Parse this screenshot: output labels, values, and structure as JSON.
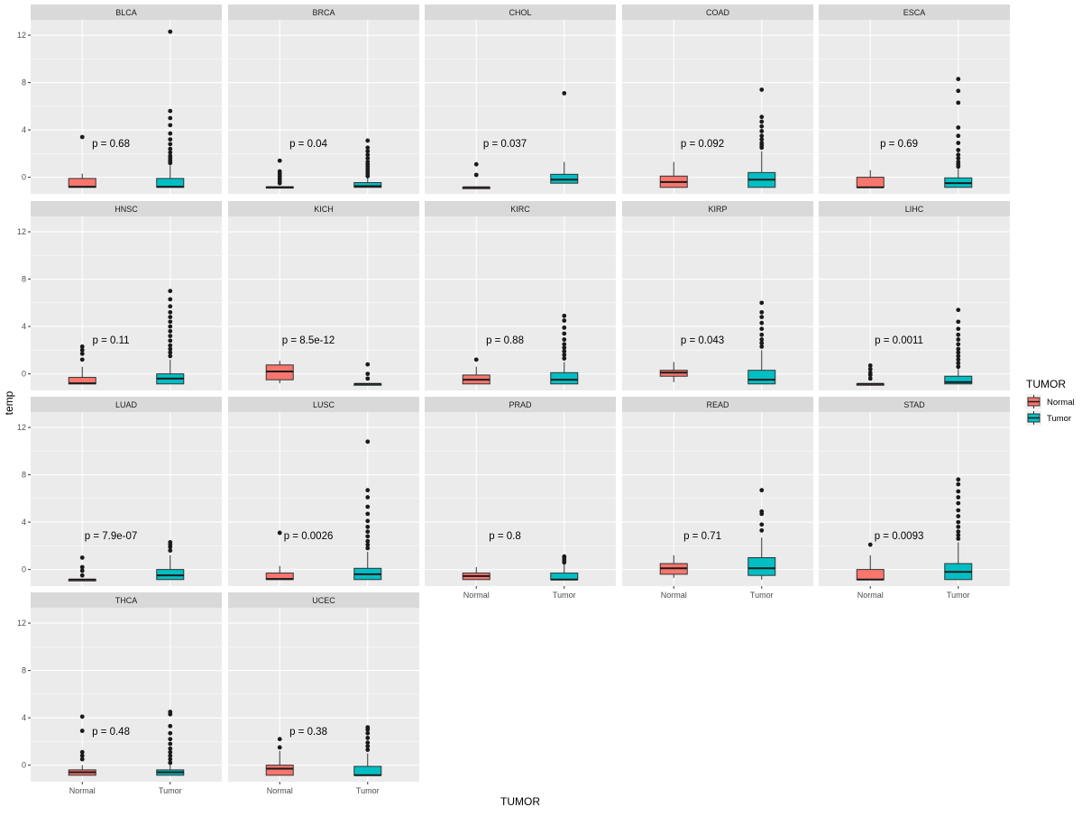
{
  "chart_data": {
    "type": "boxplot-facets",
    "xlabel": "TUMOR",
    "ylabel": "temp",
    "ylim": [
      -1.4,
      13.3
    ],
    "yticks": [
      0,
      4,
      8,
      12
    ],
    "categories": [
      "Normal",
      "Tumor"
    ],
    "legend": {
      "title": "TUMOR",
      "position": "right",
      "items": [
        {
          "label": "Normal",
          "color": "#F8766D"
        },
        {
          "label": "Tumor",
          "color": "#00BFC4"
        }
      ]
    },
    "colors": {
      "Normal": "#F8766D",
      "Tumor": "#00BFC4",
      "panel": "#EBEBEB",
      "strip": "#D9D9D9",
      "grid": "#FFFFFF"
    },
    "facets": [
      {
        "name": "BLCA",
        "p_label": "p = 0.68",
        "normal": {
          "lw": -0.85,
          "q1": -0.85,
          "med": -0.8,
          "q3": -0.1,
          "uw": 0.3,
          "out": [
            3.4
          ]
        },
        "tumor": {
          "lw": -0.85,
          "q1": -0.85,
          "med": -0.8,
          "q3": -0.1,
          "uw": 1.0,
          "out": [
            1.2,
            1.4,
            1.6,
            1.8,
            2.1,
            2.4,
            2.8,
            3.2,
            3.7,
            4.4,
            5.0,
            5.6,
            12.3
          ]
        }
      },
      {
        "name": "BRCA",
        "p_label": "p = 0.04",
        "normal": {
          "lw": -0.85,
          "q1": -0.85,
          "med": -0.85,
          "q3": -0.8,
          "uw": -0.75,
          "out": [
            -0.5,
            -0.3,
            -0.1,
            0.1,
            0.3,
            0.5,
            1.4
          ]
        },
        "tumor": {
          "lw": -0.85,
          "q1": -0.85,
          "med": -0.75,
          "q3": -0.45,
          "uw": 0.0,
          "out": [
            0.1,
            0.3,
            0.5,
            0.7,
            0.9,
            1.1,
            1.3,
            1.6,
            1.9,
            2.2,
            2.5,
            3.1
          ]
        }
      },
      {
        "name": "CHOL",
        "p_label": "p = 0.037",
        "normal": {
          "lw": -0.85,
          "q1": -0.85,
          "med": -0.85,
          "q3": -0.85,
          "uw": -0.85,
          "out": [
            0.2,
            1.1
          ]
        },
        "tumor": {
          "lw": -0.5,
          "q1": -0.5,
          "med": -0.2,
          "q3": 0.25,
          "uw": 1.3,
          "out": [
            7.1
          ]
        }
      },
      {
        "name": "COAD",
        "p_label": "p = 0.092",
        "normal": {
          "lw": -0.85,
          "q1": -0.85,
          "med": -0.4,
          "q3": 0.1,
          "uw": 1.3,
          "out": []
        },
        "tumor": {
          "lw": -0.85,
          "q1": -0.85,
          "med": -0.2,
          "q3": 0.4,
          "uw": 2.2,
          "out": [
            2.5,
            2.7,
            2.9,
            3.2,
            3.5,
            3.9,
            4.3,
            4.7,
            5.1,
            7.4
          ]
        }
      },
      {
        "name": "ESCA",
        "p_label": "p = 0.69",
        "normal": {
          "lw": -0.85,
          "q1": -0.85,
          "med": -0.85,
          "q3": 0.0,
          "uw": 0.6,
          "out": []
        },
        "tumor": {
          "lw": -0.85,
          "q1": -0.85,
          "med": -0.5,
          "q3": -0.05,
          "uw": 0.7,
          "out": [
            0.9,
            1.1,
            1.3,
            1.6,
            1.9,
            2.3,
            2.9,
            3.5,
            4.2,
            6.3,
            7.3,
            8.3
          ]
        }
      },
      {
        "name": "HNSC",
        "p_label": "p = 0.11",
        "normal": {
          "lw": -0.85,
          "q1": -0.85,
          "med": -0.8,
          "q3": -0.3,
          "uw": 0.6,
          "out": [
            1.2,
            1.7,
            2.0,
            2.3
          ]
        },
        "tumor": {
          "lw": -0.85,
          "q1": -0.85,
          "med": -0.4,
          "q3": 0.0,
          "uw": 1.2,
          "out": [
            1.5,
            1.8,
            2.1,
            2.4,
            2.8,
            3.2,
            3.6,
            4.0,
            4.4,
            4.8,
            5.2,
            5.7,
            6.3,
            7.0
          ]
        }
      },
      {
        "name": "KICH",
        "p_label": "p = 8.5e-12",
        "normal": {
          "lw": -0.8,
          "q1": -0.5,
          "med": 0.2,
          "q3": 0.75,
          "uw": 1.1,
          "out": []
        },
        "tumor": {
          "lw": -0.85,
          "q1": -0.85,
          "med": -0.85,
          "q3": -0.85,
          "uw": -0.85,
          "out": [
            -0.4,
            0.0,
            0.8
          ]
        }
      },
      {
        "name": "KIRC",
        "p_label": "p = 0.88",
        "normal": {
          "lw": -0.85,
          "q1": -0.85,
          "med": -0.5,
          "q3": -0.1,
          "uw": 0.6,
          "out": [
            1.2
          ]
        },
        "tumor": {
          "lw": -0.85,
          "q1": -0.85,
          "med": -0.5,
          "q3": 0.1,
          "uw": 1.0,
          "out": [
            1.3,
            1.6,
            1.9,
            2.2,
            2.5,
            2.9,
            3.4,
            3.9,
            4.5,
            4.9
          ]
        }
      },
      {
        "name": "KIRP",
        "p_label": "p = 0.043",
        "normal": {
          "lw": -0.7,
          "q1": -0.2,
          "med": 0.1,
          "q3": 0.3,
          "uw": 1.0,
          "out": []
        },
        "tumor": {
          "lw": -0.85,
          "q1": -0.85,
          "med": -0.5,
          "q3": 0.3,
          "uw": 2.0,
          "out": [
            2.3,
            2.6,
            2.9,
            3.3,
            3.8,
            4.3,
            4.8,
            5.2,
            6.0
          ]
        }
      },
      {
        "name": "LIHC",
        "p_label": "p = 0.0011",
        "normal": {
          "lw": -0.85,
          "q1": -0.85,
          "med": -0.85,
          "q3": -0.85,
          "uw": -0.85,
          "out": [
            -0.4,
            -0.1,
            0.1,
            0.4,
            0.7
          ]
        },
        "tumor": {
          "lw": -0.85,
          "q1": -0.85,
          "med": -0.7,
          "q3": -0.2,
          "uw": 0.4,
          "out": [
            0.6,
            0.9,
            1.2,
            1.5,
            1.8,
            2.1,
            2.5,
            2.9,
            3.3,
            3.8,
            4.4,
            5.4
          ]
        }
      },
      {
        "name": "LUAD",
        "p_label": "p = 7.9e-07",
        "normal": {
          "lw": -0.85,
          "q1": -0.85,
          "med": -0.85,
          "q3": -0.85,
          "uw": -0.85,
          "out": [
            -0.5,
            -0.1,
            0.2,
            1.0
          ]
        },
        "tumor": {
          "lw": -0.85,
          "q1": -0.85,
          "med": -0.5,
          "q3": 0.0,
          "uw": 1.2,
          "out": [
            1.6,
            1.9,
            2.1,
            2.3
          ]
        }
      },
      {
        "name": "LUSC",
        "p_label": "p = 0.0026",
        "normal": {
          "lw": -0.85,
          "q1": -0.85,
          "med": -0.8,
          "q3": -0.3,
          "uw": 0.3,
          "out": [
            3.1
          ]
        },
        "tumor": {
          "lw": -0.85,
          "q1": -0.85,
          "med": -0.4,
          "q3": 0.1,
          "uw": 1.5,
          "out": [
            1.8,
            2.1,
            2.4,
            2.8,
            3.2,
            3.6,
            4.1,
            4.7,
            5.3,
            6.1,
            6.7,
            10.8
          ]
        }
      },
      {
        "name": "PRAD",
        "p_label": "p = 0.8",
        "normal": {
          "lw": -0.85,
          "q1": -0.85,
          "med": -0.55,
          "q3": -0.3,
          "uw": 0.2,
          "out": []
        },
        "tumor": {
          "lw": -0.85,
          "q1": -0.85,
          "med": -0.85,
          "q3": -0.3,
          "uw": 0.5,
          "out": [
            0.6,
            0.8,
            1.0,
            1.1
          ]
        }
      },
      {
        "name": "READ",
        "p_label": "p = 0.71",
        "normal": {
          "lw": -0.7,
          "q1": -0.4,
          "med": 0.1,
          "q3": 0.5,
          "uw": 1.2,
          "out": []
        },
        "tumor": {
          "lw": -0.85,
          "q1": -0.5,
          "med": 0.1,
          "q3": 1.0,
          "uw": 2.7,
          "out": [
            3.3,
            3.8,
            4.7,
            4.9,
            6.7
          ]
        }
      },
      {
        "name": "STAD",
        "p_label": "p = 0.0093",
        "normal": {
          "lw": -0.85,
          "q1": -0.85,
          "med": -0.85,
          "q3": 0.0,
          "uw": 1.2,
          "out": [
            2.1
          ]
        },
        "tumor": {
          "lw": -0.85,
          "q1": -0.85,
          "med": -0.2,
          "q3": 0.5,
          "uw": 2.3,
          "out": [
            2.6,
            2.9,
            3.2,
            3.6,
            4.0,
            4.5,
            5.0,
            5.6,
            6.1,
            6.6,
            7.2,
            7.6
          ]
        }
      },
      {
        "name": "THCA",
        "p_label": "p = 0.48",
        "normal": {
          "lw": -0.85,
          "q1": -0.85,
          "med": -0.6,
          "q3": -0.4,
          "uw": 0.0,
          "out": [
            0.5,
            0.8,
            1.1,
            2.9,
            4.1
          ]
        },
        "tumor": {
          "lw": -0.85,
          "q1": -0.85,
          "med": -0.6,
          "q3": -0.4,
          "uw": 0.0,
          "out": [
            0.2,
            0.5,
            0.8,
            1.1,
            1.4,
            1.8,
            2.2,
            2.7,
            3.3,
            4.3,
            4.5
          ]
        }
      },
      {
        "name": "UCEC",
        "p_label": "p = 0.38",
        "normal": {
          "lw": -0.85,
          "q1": -0.85,
          "med": -0.3,
          "q3": 0.0,
          "uw": 1.2,
          "out": [
            1.5,
            2.2
          ]
        },
        "tumor": {
          "lw": -0.85,
          "q1": -0.85,
          "med": -0.85,
          "q3": -0.1,
          "uw": 1.0,
          "out": [
            1.3,
            1.6,
            1.9,
            2.3,
            2.7,
            3.0,
            3.2
          ]
        }
      }
    ]
  }
}
